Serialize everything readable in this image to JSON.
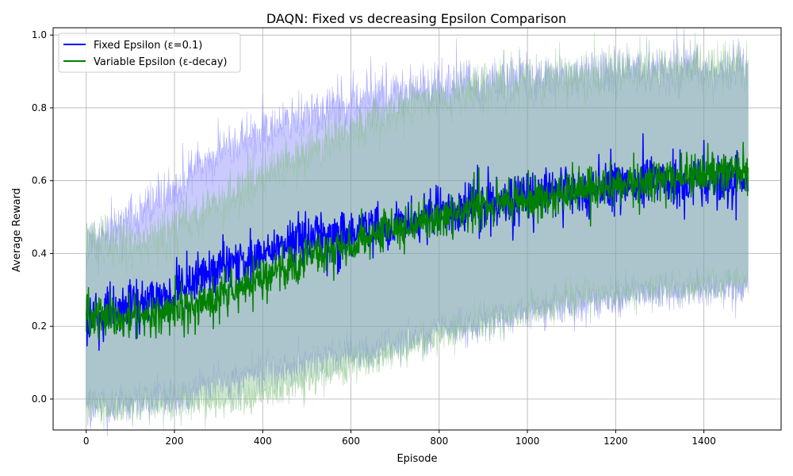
{
  "chart_data": {
    "type": "line",
    "title": "DAQN: Fixed vs decreasing Epsilon Comparison",
    "xlabel": "Episode",
    "ylabel": "Average Reward",
    "xlim": [
      -75,
      1575
    ],
    "ylim": [
      -0.085,
      1.02
    ],
    "xticks": [
      0,
      200,
      400,
      600,
      800,
      1000,
      1200,
      1400
    ],
    "yticks": [
      0.0,
      0.2,
      0.4,
      0.6,
      0.8,
      1.0
    ],
    "xtick_labels": [
      "0",
      "200",
      "400",
      "600",
      "800",
      "1000",
      "1200",
      "1400"
    ],
    "ytick_labels": [
      "0.0",
      "0.2",
      "0.4",
      "0.6",
      "0.8",
      "1.0"
    ],
    "grid": true,
    "legend_position": "top-left",
    "episodes": 1500,
    "series": [
      {
        "name": "Fixed Epsilon (ε=0.1)",
        "color": "#0000ff",
        "band_color": "#7b7bff",
        "noise": 0.035,
        "mean_trend": [
          [
            0,
            0.22
          ],
          [
            100,
            0.25
          ],
          [
            200,
            0.29
          ],
          [
            300,
            0.36
          ],
          [
            400,
            0.4
          ],
          [
            500,
            0.44
          ],
          [
            600,
            0.46
          ],
          [
            700,
            0.48
          ],
          [
            800,
            0.51
          ],
          [
            900,
            0.53
          ],
          [
            1000,
            0.56
          ],
          [
            1100,
            0.57
          ],
          [
            1200,
            0.59
          ],
          [
            1300,
            0.6
          ],
          [
            1400,
            0.6
          ],
          [
            1500,
            0.6
          ]
        ],
        "upper_trend": [
          [
            0,
            0.42
          ],
          [
            100,
            0.5
          ],
          [
            200,
            0.58
          ],
          [
            300,
            0.68
          ],
          [
            400,
            0.74
          ],
          [
            500,
            0.78
          ],
          [
            600,
            0.81
          ],
          [
            700,
            0.84
          ],
          [
            800,
            0.86
          ],
          [
            900,
            0.87
          ],
          [
            1000,
            0.88
          ],
          [
            1100,
            0.89
          ],
          [
            1200,
            0.9
          ],
          [
            1300,
            0.9
          ],
          [
            1400,
            0.91
          ],
          [
            1500,
            0.91
          ]
        ],
        "lower_trend": [
          [
            0,
            -0.02
          ],
          [
            100,
            -0.01
          ],
          [
            200,
            0.0
          ],
          [
            300,
            0.04
          ],
          [
            400,
            0.07
          ],
          [
            500,
            0.1
          ],
          [
            600,
            0.12
          ],
          [
            700,
            0.15
          ],
          [
            800,
            0.19
          ],
          [
            900,
            0.21
          ],
          [
            1000,
            0.24
          ],
          [
            1100,
            0.26
          ],
          [
            1200,
            0.28
          ],
          [
            1300,
            0.29
          ],
          [
            1400,
            0.3
          ],
          [
            1500,
            0.3
          ]
        ]
      },
      {
        "name": "Variable Epsilon (ε-decay)",
        "color": "#008000",
        "band_color": "#7fbf7f",
        "noise": 0.03,
        "mean_trend": [
          [
            0,
            0.22
          ],
          [
            100,
            0.22
          ],
          [
            200,
            0.24
          ],
          [
            300,
            0.28
          ],
          [
            400,
            0.33
          ],
          [
            500,
            0.38
          ],
          [
            600,
            0.43
          ],
          [
            700,
            0.47
          ],
          [
            800,
            0.5
          ],
          [
            900,
            0.53
          ],
          [
            1000,
            0.55
          ],
          [
            1100,
            0.57
          ],
          [
            1200,
            0.59
          ],
          [
            1300,
            0.6
          ],
          [
            1400,
            0.62
          ],
          [
            1500,
            0.63
          ]
        ],
        "upper_trend": [
          [
            0,
            0.45
          ],
          [
            100,
            0.42
          ],
          [
            200,
            0.47
          ],
          [
            300,
            0.53
          ],
          [
            400,
            0.61
          ],
          [
            500,
            0.68
          ],
          [
            600,
            0.74
          ],
          [
            700,
            0.79
          ],
          [
            800,
            0.83
          ],
          [
            900,
            0.86
          ],
          [
            1000,
            0.88
          ],
          [
            1100,
            0.89
          ],
          [
            1200,
            0.9
          ],
          [
            1300,
            0.91
          ],
          [
            1400,
            0.91
          ],
          [
            1500,
            0.92
          ]
        ],
        "lower_trend": [
          [
            0,
            -0.02
          ],
          [
            100,
            -0.02
          ],
          [
            200,
            -0.01
          ],
          [
            300,
            -0.01
          ],
          [
            400,
            0.01
          ],
          [
            500,
            0.05
          ],
          [
            600,
            0.09
          ],
          [
            700,
            0.13
          ],
          [
            800,
            0.17
          ],
          [
            900,
            0.21
          ],
          [
            1000,
            0.24
          ],
          [
            1100,
            0.27
          ],
          [
            1200,
            0.29
          ],
          [
            1300,
            0.3
          ],
          [
            1400,
            0.31
          ],
          [
            1500,
            0.33
          ]
        ]
      }
    ]
  }
}
